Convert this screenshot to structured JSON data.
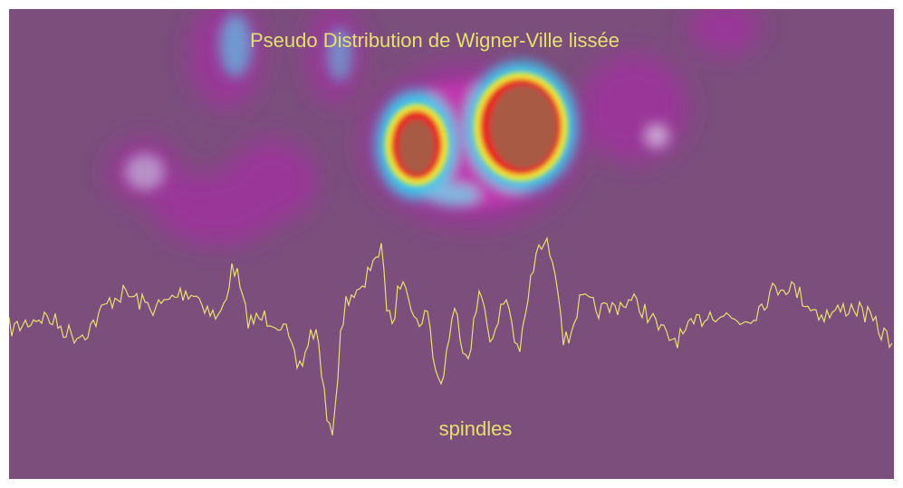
{
  "title": "Pseudo Distribution de Wigner-Ville lissée",
  "annotation": "spindles"
}
